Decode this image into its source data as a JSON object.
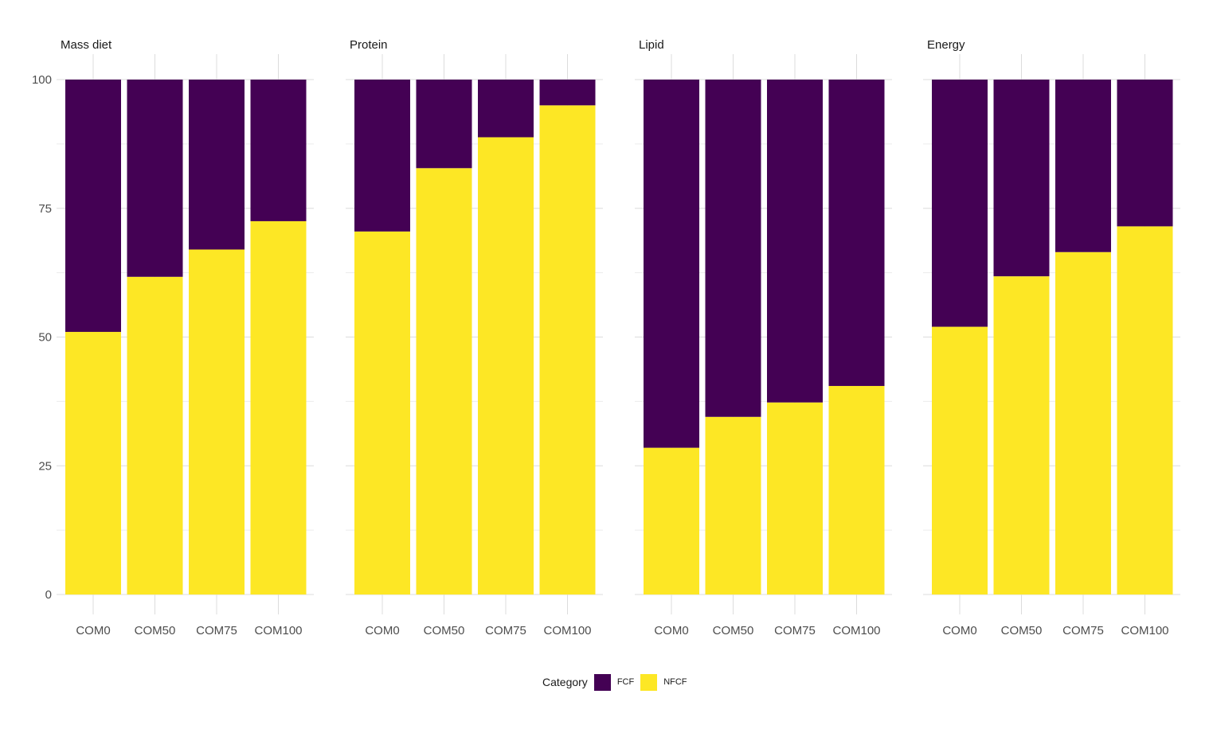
{
  "chart_data": {
    "type": "bar",
    "stacked": true,
    "categories": [
      "COM0",
      "COM50",
      "COM75",
      "COM100"
    ],
    "ylim": [
      0,
      100
    ],
    "yticks": [
      0,
      25,
      50,
      75,
      100
    ],
    "grid": true,
    "legend": {
      "title": "Category",
      "placement": "bottom",
      "items": [
        {
          "name": "FCF",
          "color": "#440154"
        },
        {
          "name": "NFCF",
          "color": "#FDE725"
        }
      ]
    },
    "panels": [
      {
        "title": "Mass diet",
        "series": [
          {
            "name": "NFCF",
            "values": [
              51,
              61.7,
              67,
              72.5
            ]
          },
          {
            "name": "FCF",
            "values": [
              49,
              38.3,
              33,
              27.5
            ]
          }
        ]
      },
      {
        "title": "Protein",
        "series": [
          {
            "name": "NFCF",
            "values": [
              70.5,
              82.8,
              88.8,
              95
            ]
          },
          {
            "name": "FCF",
            "values": [
              29.5,
              17.2,
              11.2,
              5
            ]
          }
        ]
      },
      {
        "title": "Lipid",
        "series": [
          {
            "name": "NFCF",
            "values": [
              28.5,
              34.5,
              37.3,
              40.5
            ]
          },
          {
            "name": "FCF",
            "values": [
              71.5,
              65.5,
              62.7,
              59.5
            ]
          }
        ]
      },
      {
        "title": "Energy",
        "series": [
          {
            "name": "NFCF",
            "values": [
              52,
              61.8,
              66.5,
              71.5
            ]
          },
          {
            "name": "FCF",
            "values": [
              48,
              38.2,
              33.5,
              28.5
            ]
          }
        ]
      }
    ]
  }
}
